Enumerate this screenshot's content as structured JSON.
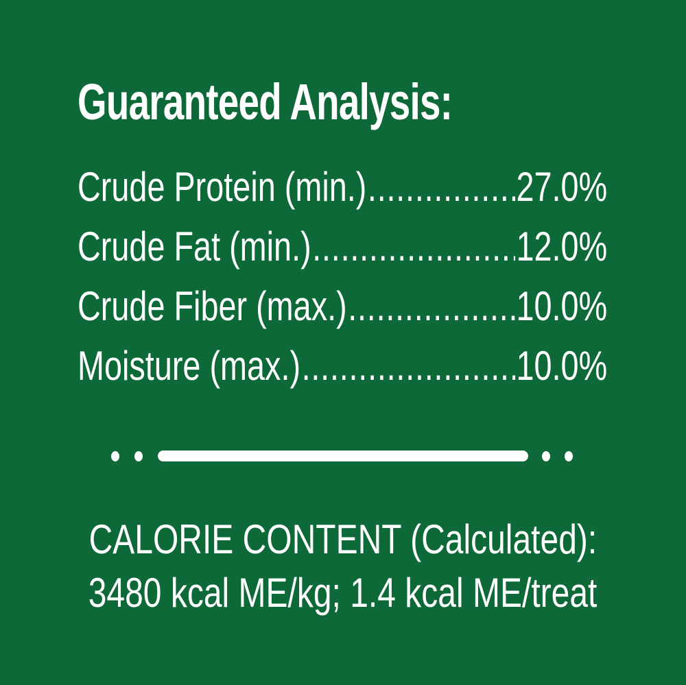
{
  "title": "Guaranteed Analysis:",
  "rows": [
    {
      "label": "Crude Protein (min.)",
      "value": "27.0%"
    },
    {
      "label": "Crude Fat (min.)",
      "value": "12.0%"
    },
    {
      "label": "Crude Fiber (max.)",
      "value": "10.0%"
    },
    {
      "label": "Moisture (max.)",
      "value": "10.0%"
    }
  ],
  "calorie": {
    "line1": "CALORIE CONTENT (Calculated):",
    "line2": "3480 kcal ME/kg; 1.4 kcal ME/treat"
  },
  "colors": {
    "background": "#0d6a38",
    "text": "#ffffff"
  }
}
